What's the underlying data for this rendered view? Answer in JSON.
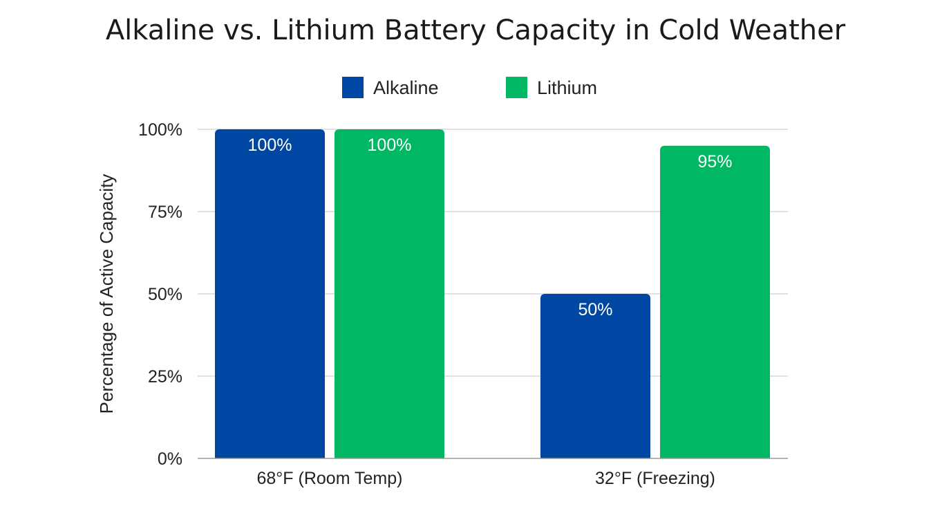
{
  "chart_data": {
    "type": "bar",
    "title": "Alkaline vs. Lithium Battery Capacity in Cold Weather",
    "xlabel": "",
    "ylabel": "Percentage of Active Capacity",
    "categories": [
      "68°F (Room Temp)",
      "32°F (Freezing)"
    ],
    "series": [
      {
        "name": "Alkaline",
        "color": "#0047a3",
        "values": [
          100,
          50
        ],
        "labels": [
          "100%",
          "50%"
        ]
      },
      {
        "name": "Lithium",
        "color": "#00b863",
        "values": [
          100,
          95
        ],
        "labels": [
          "100%",
          "95%"
        ]
      }
    ],
    "ylim": [
      0,
      100
    ],
    "yticks": [
      0,
      25,
      50,
      75,
      100
    ],
    "ytick_labels": [
      "0%",
      "25%",
      "50%",
      "75%",
      "100%"
    ],
    "grid": true,
    "legend": "top-center"
  }
}
